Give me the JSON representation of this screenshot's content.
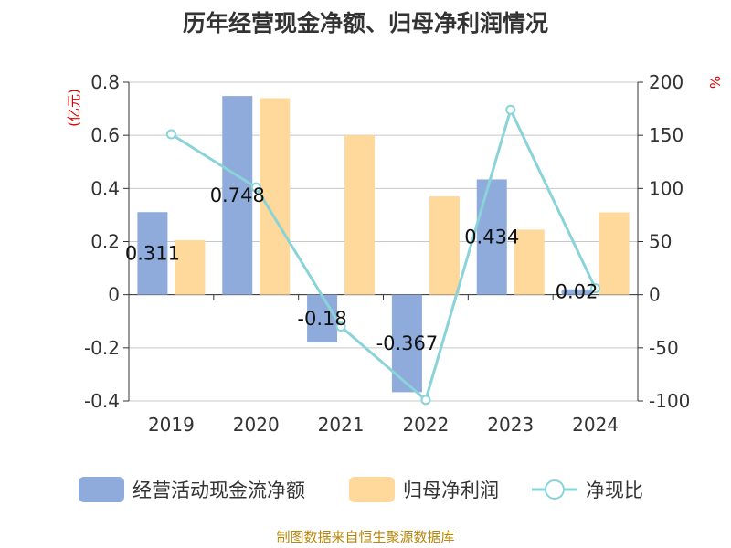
{
  "chart_data": {
    "type": "bar",
    "title": "历年经营现金净额、归母净利润情况",
    "categories": [
      "2019",
      "2020",
      "2021",
      "2022",
      "2023",
      "2024"
    ],
    "left_axis": {
      "unit": "(亿元)",
      "ylim": [
        -0.4,
        0.8
      ],
      "ticks": [
        "0.8",
        "0.6",
        "0.4",
        "0.2",
        "0",
        "-0.2",
        "-0.4"
      ],
      "tick_values": [
        0.8,
        0.6,
        0.4,
        0.2,
        0,
        -0.2,
        -0.4
      ]
    },
    "right_axis": {
      "unit": "%",
      "ylim": [
        -100,
        200
      ],
      "ticks": [
        "200",
        "150",
        "100",
        "50",
        "0",
        "-50",
        "-100"
      ],
      "tick_values": [
        200,
        150,
        100,
        50,
        0,
        -50,
        -100
      ]
    },
    "series": [
      {
        "name": "经营活动现金流净额",
        "type": "bar",
        "axis": "left",
        "color": "#8eabdb",
        "values": [
          0.311,
          0.748,
          -0.18,
          -0.367,
          0.434,
          0.02
        ],
        "labels": [
          "0.311",
          "0.748",
          "-0.18",
          "-0.367",
          "0.434",
          "0.02"
        ]
      },
      {
        "name": "归母净利润",
        "type": "bar",
        "axis": "left",
        "color": "#ffd89b",
        "values": [
          0.205,
          0.74,
          0.6,
          0.37,
          0.245,
          0.31
        ]
      },
      {
        "name": "净现比",
        "type": "line",
        "axis": "right",
        "color": "#8ad3d8",
        "values": [
          151,
          101,
          -30,
          -99,
          174,
          6
        ]
      }
    ],
    "grid": true,
    "legend": "bottom",
    "source": "制图数据来自恒生聚源数据库"
  }
}
